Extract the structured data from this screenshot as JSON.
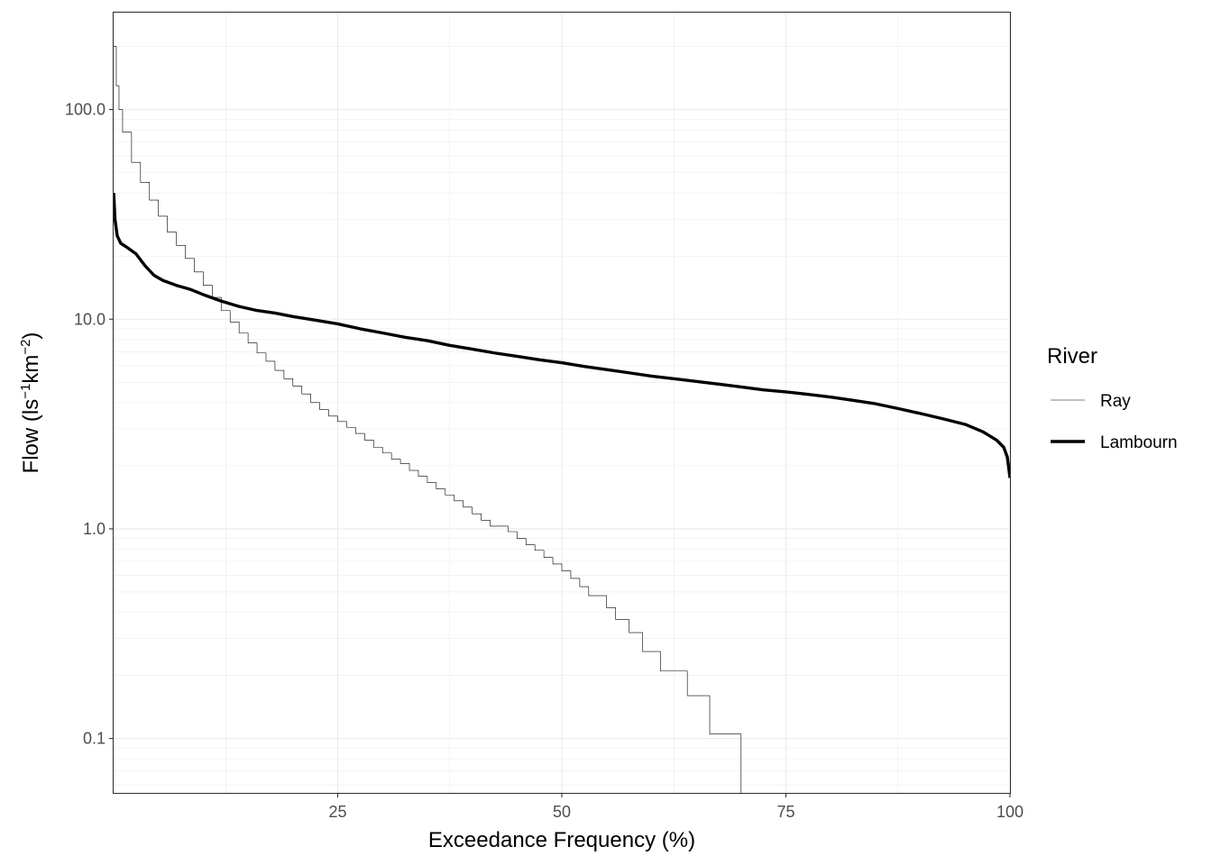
{
  "chart_data": {
    "type": "line",
    "xlabel": "Exceedance Frequency (%)",
    "ylabel_main": "Flow (ls",
    "ylabel_sup1": "−1",
    "ylabel_mid": "km",
    "ylabel_sup2": "−2",
    "ylabel_end": ")",
    "x_scale": "linear",
    "y_scale": "log10",
    "xlim": [
      0,
      100
    ],
    "ylim": [
      0.055,
      290
    ],
    "x_ticks": [
      {
        "value": 25,
        "label": "25"
      },
      {
        "value": 50,
        "label": "50"
      },
      {
        "value": 75,
        "label": "75"
      },
      {
        "value": 100,
        "label": "100"
      }
    ],
    "y_ticks": [
      {
        "value": 0.1,
        "label": "0.1"
      },
      {
        "value": 1,
        "label": "1.0"
      },
      {
        "value": 10,
        "label": "10.0"
      },
      {
        "value": 100,
        "label": "100.0"
      }
    ],
    "grid": true,
    "legend": {
      "title": "River",
      "placement": "right"
    },
    "series": [
      {
        "name": "Ray",
        "color": "#000000",
        "width": "thin",
        "step": true,
        "points": [
          [
            0.01,
            200
          ],
          [
            0.3,
            130
          ],
          [
            0.6,
            100
          ],
          [
            1,
            78
          ],
          [
            2,
            56
          ],
          [
            3,
            45
          ],
          [
            4,
            37
          ],
          [
            5,
            31
          ],
          [
            6,
            26
          ],
          [
            7,
            22.5
          ],
          [
            8,
            19.5
          ],
          [
            9,
            16.8
          ],
          [
            10,
            14.5
          ],
          [
            11,
            12.7
          ],
          [
            12,
            11.0
          ],
          [
            13,
            9.7
          ],
          [
            14,
            8.6
          ],
          [
            15,
            7.7
          ],
          [
            16,
            6.9
          ],
          [
            17,
            6.3
          ],
          [
            18,
            5.7
          ],
          [
            19,
            5.2
          ],
          [
            20,
            4.8
          ],
          [
            21,
            4.4
          ],
          [
            22,
            4.0
          ],
          [
            23,
            3.7
          ],
          [
            24,
            3.45
          ],
          [
            25,
            3.25
          ],
          [
            26,
            3.05
          ],
          [
            27,
            2.85
          ],
          [
            28,
            2.65
          ],
          [
            29,
            2.45
          ],
          [
            30,
            2.3
          ],
          [
            31,
            2.15
          ],
          [
            32,
            2.05
          ],
          [
            33,
            1.9
          ],
          [
            34,
            1.78
          ],
          [
            35,
            1.66
          ],
          [
            36,
            1.55
          ],
          [
            37,
            1.45
          ],
          [
            38,
            1.36
          ],
          [
            39,
            1.27
          ],
          [
            40,
            1.18
          ],
          [
            41,
            1.1
          ],
          [
            42,
            1.03
          ],
          [
            43,
            1.03
          ],
          [
            44,
            0.97
          ],
          [
            45,
            0.9
          ],
          [
            46,
            0.84
          ],
          [
            47,
            0.79
          ],
          [
            48,
            0.73
          ],
          [
            49,
            0.68
          ],
          [
            50,
            0.63
          ],
          [
            51,
            0.58
          ],
          [
            52,
            0.53
          ],
          [
            53,
            0.48
          ],
          [
            55,
            0.42
          ],
          [
            56,
            0.37
          ],
          [
            57.5,
            0.32
          ],
          [
            59,
            0.26
          ],
          [
            61,
            0.21
          ],
          [
            64,
            0.16
          ],
          [
            66.5,
            0.105
          ],
          [
            70,
            0.105
          ],
          [
            70,
            0.055
          ]
        ]
      },
      {
        "name": "Lambourn",
        "color": "#000000",
        "width": "thick",
        "step": false,
        "points": [
          [
            0.01,
            40
          ],
          [
            0.15,
            30
          ],
          [
            0.4,
            25
          ],
          [
            0.8,
            23
          ],
          [
            1.5,
            22
          ],
          [
            2.5,
            20.5
          ],
          [
            3.5,
            18
          ],
          [
            4.5,
            16.2
          ],
          [
            5.5,
            15.3
          ],
          [
            7,
            14.5
          ],
          [
            8.5,
            13.9
          ],
          [
            10,
            13.1
          ],
          [
            12,
            12.2
          ],
          [
            14,
            11.5
          ],
          [
            16,
            11.0
          ],
          [
            18,
            10.7
          ],
          [
            20,
            10.3
          ],
          [
            22.5,
            9.9
          ],
          [
            25,
            9.5
          ],
          [
            27.5,
            9.0
          ],
          [
            30,
            8.6
          ],
          [
            32.5,
            8.2
          ],
          [
            35,
            7.9
          ],
          [
            37.5,
            7.5
          ],
          [
            40,
            7.2
          ],
          [
            42.5,
            6.9
          ],
          [
            45,
            6.65
          ],
          [
            47.5,
            6.4
          ],
          [
            50,
            6.2
          ],
          [
            52.5,
            5.95
          ],
          [
            55,
            5.75
          ],
          [
            57.5,
            5.55
          ],
          [
            60,
            5.35
          ],
          [
            62.5,
            5.2
          ],
          [
            65,
            5.05
          ],
          [
            67.5,
            4.9
          ],
          [
            70,
            4.75
          ],
          [
            72.5,
            4.6
          ],
          [
            75,
            4.5
          ],
          [
            77.5,
            4.38
          ],
          [
            80,
            4.25
          ],
          [
            82.5,
            4.1
          ],
          [
            85,
            3.95
          ],
          [
            87.5,
            3.75
          ],
          [
            90,
            3.55
          ],
          [
            92.5,
            3.35
          ],
          [
            95,
            3.15
          ],
          [
            97,
            2.9
          ],
          [
            98.5,
            2.65
          ],
          [
            99.3,
            2.45
          ],
          [
            99.7,
            2.2
          ],
          [
            100,
            1.75
          ]
        ]
      }
    ]
  }
}
